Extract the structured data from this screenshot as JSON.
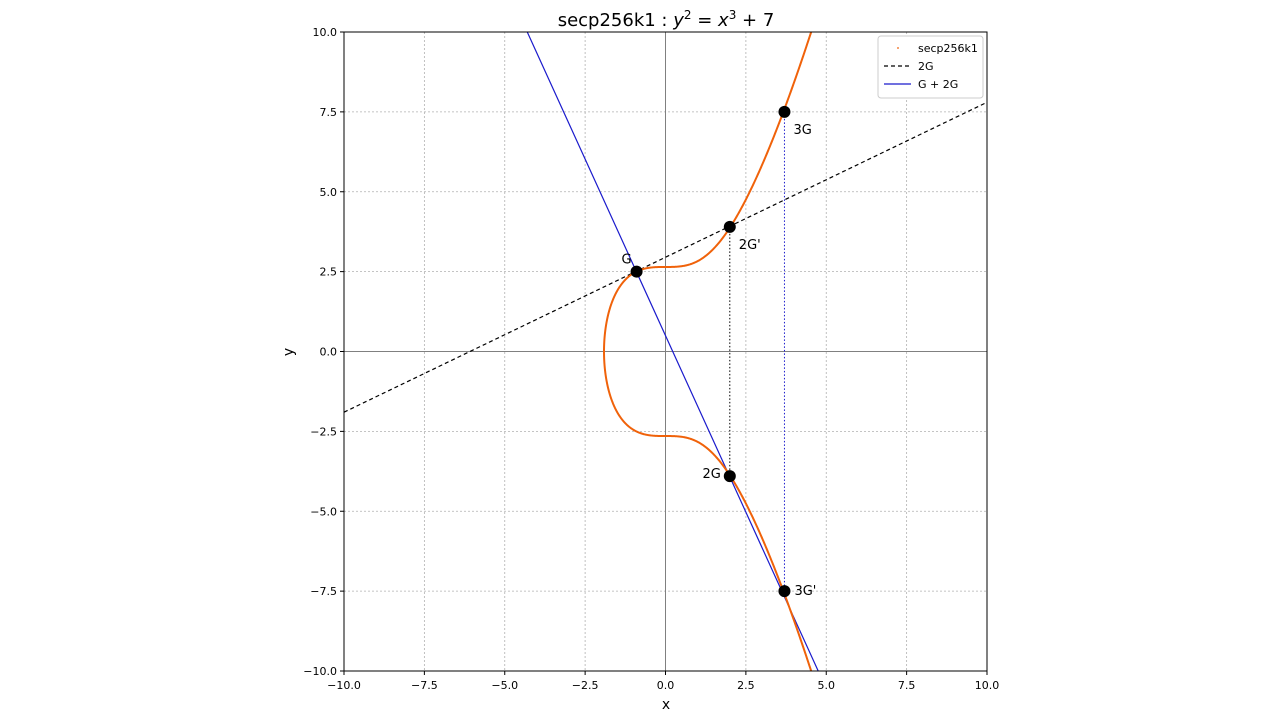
{
  "chart_data": {
    "type": "line",
    "title": {
      "prefix": "secp256k1 : ",
      "y": "y",
      "y_exp": "2",
      "equals": " = ",
      "x": "x",
      "x_exp": "3",
      "suffix": " + 7"
    },
    "xlabel": "x",
    "ylabel": "y",
    "xlim": [
      -10,
      10
    ],
    "ylim": [
      -10,
      10
    ],
    "grid": true,
    "x_ticks": [
      {
        "value": -10,
        "label": "−10.0"
      },
      {
        "value": -7.5,
        "label": "−7.5"
      },
      {
        "value": -5,
        "label": "−5.0"
      },
      {
        "value": -2.5,
        "label": "−2.5"
      },
      {
        "value": 0,
        "label": "0.0"
      },
      {
        "value": 2.5,
        "label": "2.5"
      },
      {
        "value": 5,
        "label": "5.0"
      },
      {
        "value": 7.5,
        "label": "7.5"
      },
      {
        "value": 10,
        "label": "10.0"
      }
    ],
    "y_ticks": [
      {
        "value": 10,
        "label": "10.0"
      },
      {
        "value": 7.5,
        "label": "7.5"
      },
      {
        "value": 5,
        "label": "5.0"
      },
      {
        "value": 2.5,
        "label": "2.5"
      },
      {
        "value": 0,
        "label": "0.0"
      },
      {
        "value": -2.5,
        "label": "−2.5"
      },
      {
        "value": -5,
        "label": "−5.0"
      },
      {
        "value": -7.5,
        "label": "−7.5"
      },
      {
        "value": -10,
        "label": "−10.0"
      }
    ],
    "curve": {
      "name": "secp256k1",
      "equation": "y^2 = x^3 + 7",
      "color": "#f0620a"
    },
    "lines": [
      {
        "name": "2G",
        "color": "#000000",
        "style": "dashed",
        "x": [
          -10,
          10
        ],
        "y": [
          -1.9,
          7.8
        ]
      },
      {
        "name": "G + 2G",
        "color": "#1a1acc",
        "style": "solid",
        "x": [
          -4.3,
          4.75
        ],
        "y": [
          10,
          -10
        ]
      }
    ],
    "connectors": [
      {
        "color": "#000000",
        "x": [
          2.0,
          2.0
        ],
        "y": [
          3.9,
          -3.9
        ]
      },
      {
        "color": "#1a1acc",
        "x": [
          3.7,
          3.7
        ],
        "y": [
          7.5,
          -7.5
        ]
      }
    ],
    "points": [
      {
        "label": "G",
        "x": -0.9,
        "y": 2.5,
        "label_pos": "top-left"
      },
      {
        "label": "2G'",
        "x": 2.0,
        "y": 3.9,
        "label_pos": "bottom-right"
      },
      {
        "label": "3G",
        "x": 3.7,
        "y": 7.5,
        "label_pos": "bottom-right"
      },
      {
        "label": "2G",
        "x": 2.0,
        "y": -3.9,
        "label_pos": "left"
      },
      {
        "label": "3G'",
        "x": 3.7,
        "y": -7.5,
        "label_pos": "right"
      }
    ],
    "legend": {
      "position": "top-right",
      "entries": [
        {
          "label": "secp256k1",
          "marker": "dot",
          "color": "#f0620a"
        },
        {
          "label": "2G",
          "marker": "dashed",
          "color": "#000000"
        },
        {
          "label": "G + 2G",
          "marker": "line",
          "color": "#1a1acc"
        }
      ]
    }
  }
}
